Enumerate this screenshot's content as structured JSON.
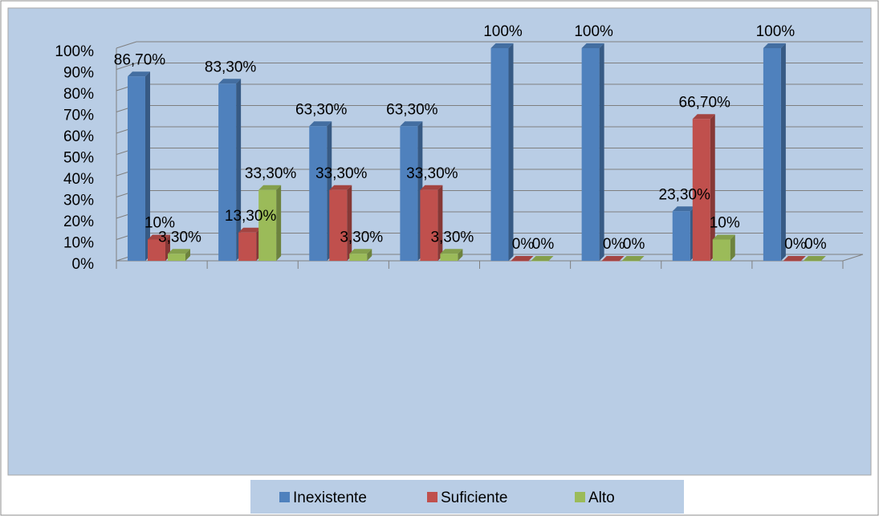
{
  "chart_data": {
    "type": "bar3d",
    "categories": [
      null,
      null,
      null,
      null,
      null,
      null,
      null,
      null
    ],
    "series": [
      {
        "name": "Inexistente",
        "color": "#4f81bd",
        "values": [
          86.7,
          83.3,
          63.3,
          63.3,
          100,
          100,
          23.3,
          100
        ],
        "value_labels": [
          "86,70%",
          "83,30%",
          "63,30%",
          "63,30%",
          "100%",
          "100%",
          "23,30%",
          "100%"
        ]
      },
      {
        "name": "Suficiente",
        "color": "#c0504d",
        "values": [
          10,
          13.3,
          33.3,
          33.3,
          0,
          0,
          66.7,
          0
        ],
        "value_labels": [
          "10%",
          "13,30%",
          "33,30%",
          "33,30%",
          "0%",
          "0%",
          "66,70%",
          "0%"
        ]
      },
      {
        "name": "Alto",
        "color": "#9bbb59",
        "values": [
          3.3,
          33.3,
          3.3,
          3.3,
          0,
          0,
          10,
          0
        ],
        "value_labels": [
          "3,30%",
          "33,30%",
          "3,30%",
          "3,30%",
          "0%",
          "0%",
          "10%",
          "0%"
        ]
      }
    ],
    "ylim": [
      0,
      100
    ],
    "yticks": [
      {
        "value": 0,
        "label": "0%"
      },
      {
        "value": 10,
        "label": "10%"
      },
      {
        "value": 20,
        "label": "20%"
      },
      {
        "value": 30,
        "label": "30%"
      },
      {
        "value": 40,
        "label": "40%"
      },
      {
        "value": 50,
        "label": "50%"
      },
      {
        "value": 60,
        "label": "60%"
      },
      {
        "value": 70,
        "label": "70%"
      },
      {
        "value": 80,
        "label": "80%"
      },
      {
        "value": 90,
        "label": "90%"
      },
      {
        "value": 100,
        "label": "100%"
      }
    ],
    "grid": true
  }
}
